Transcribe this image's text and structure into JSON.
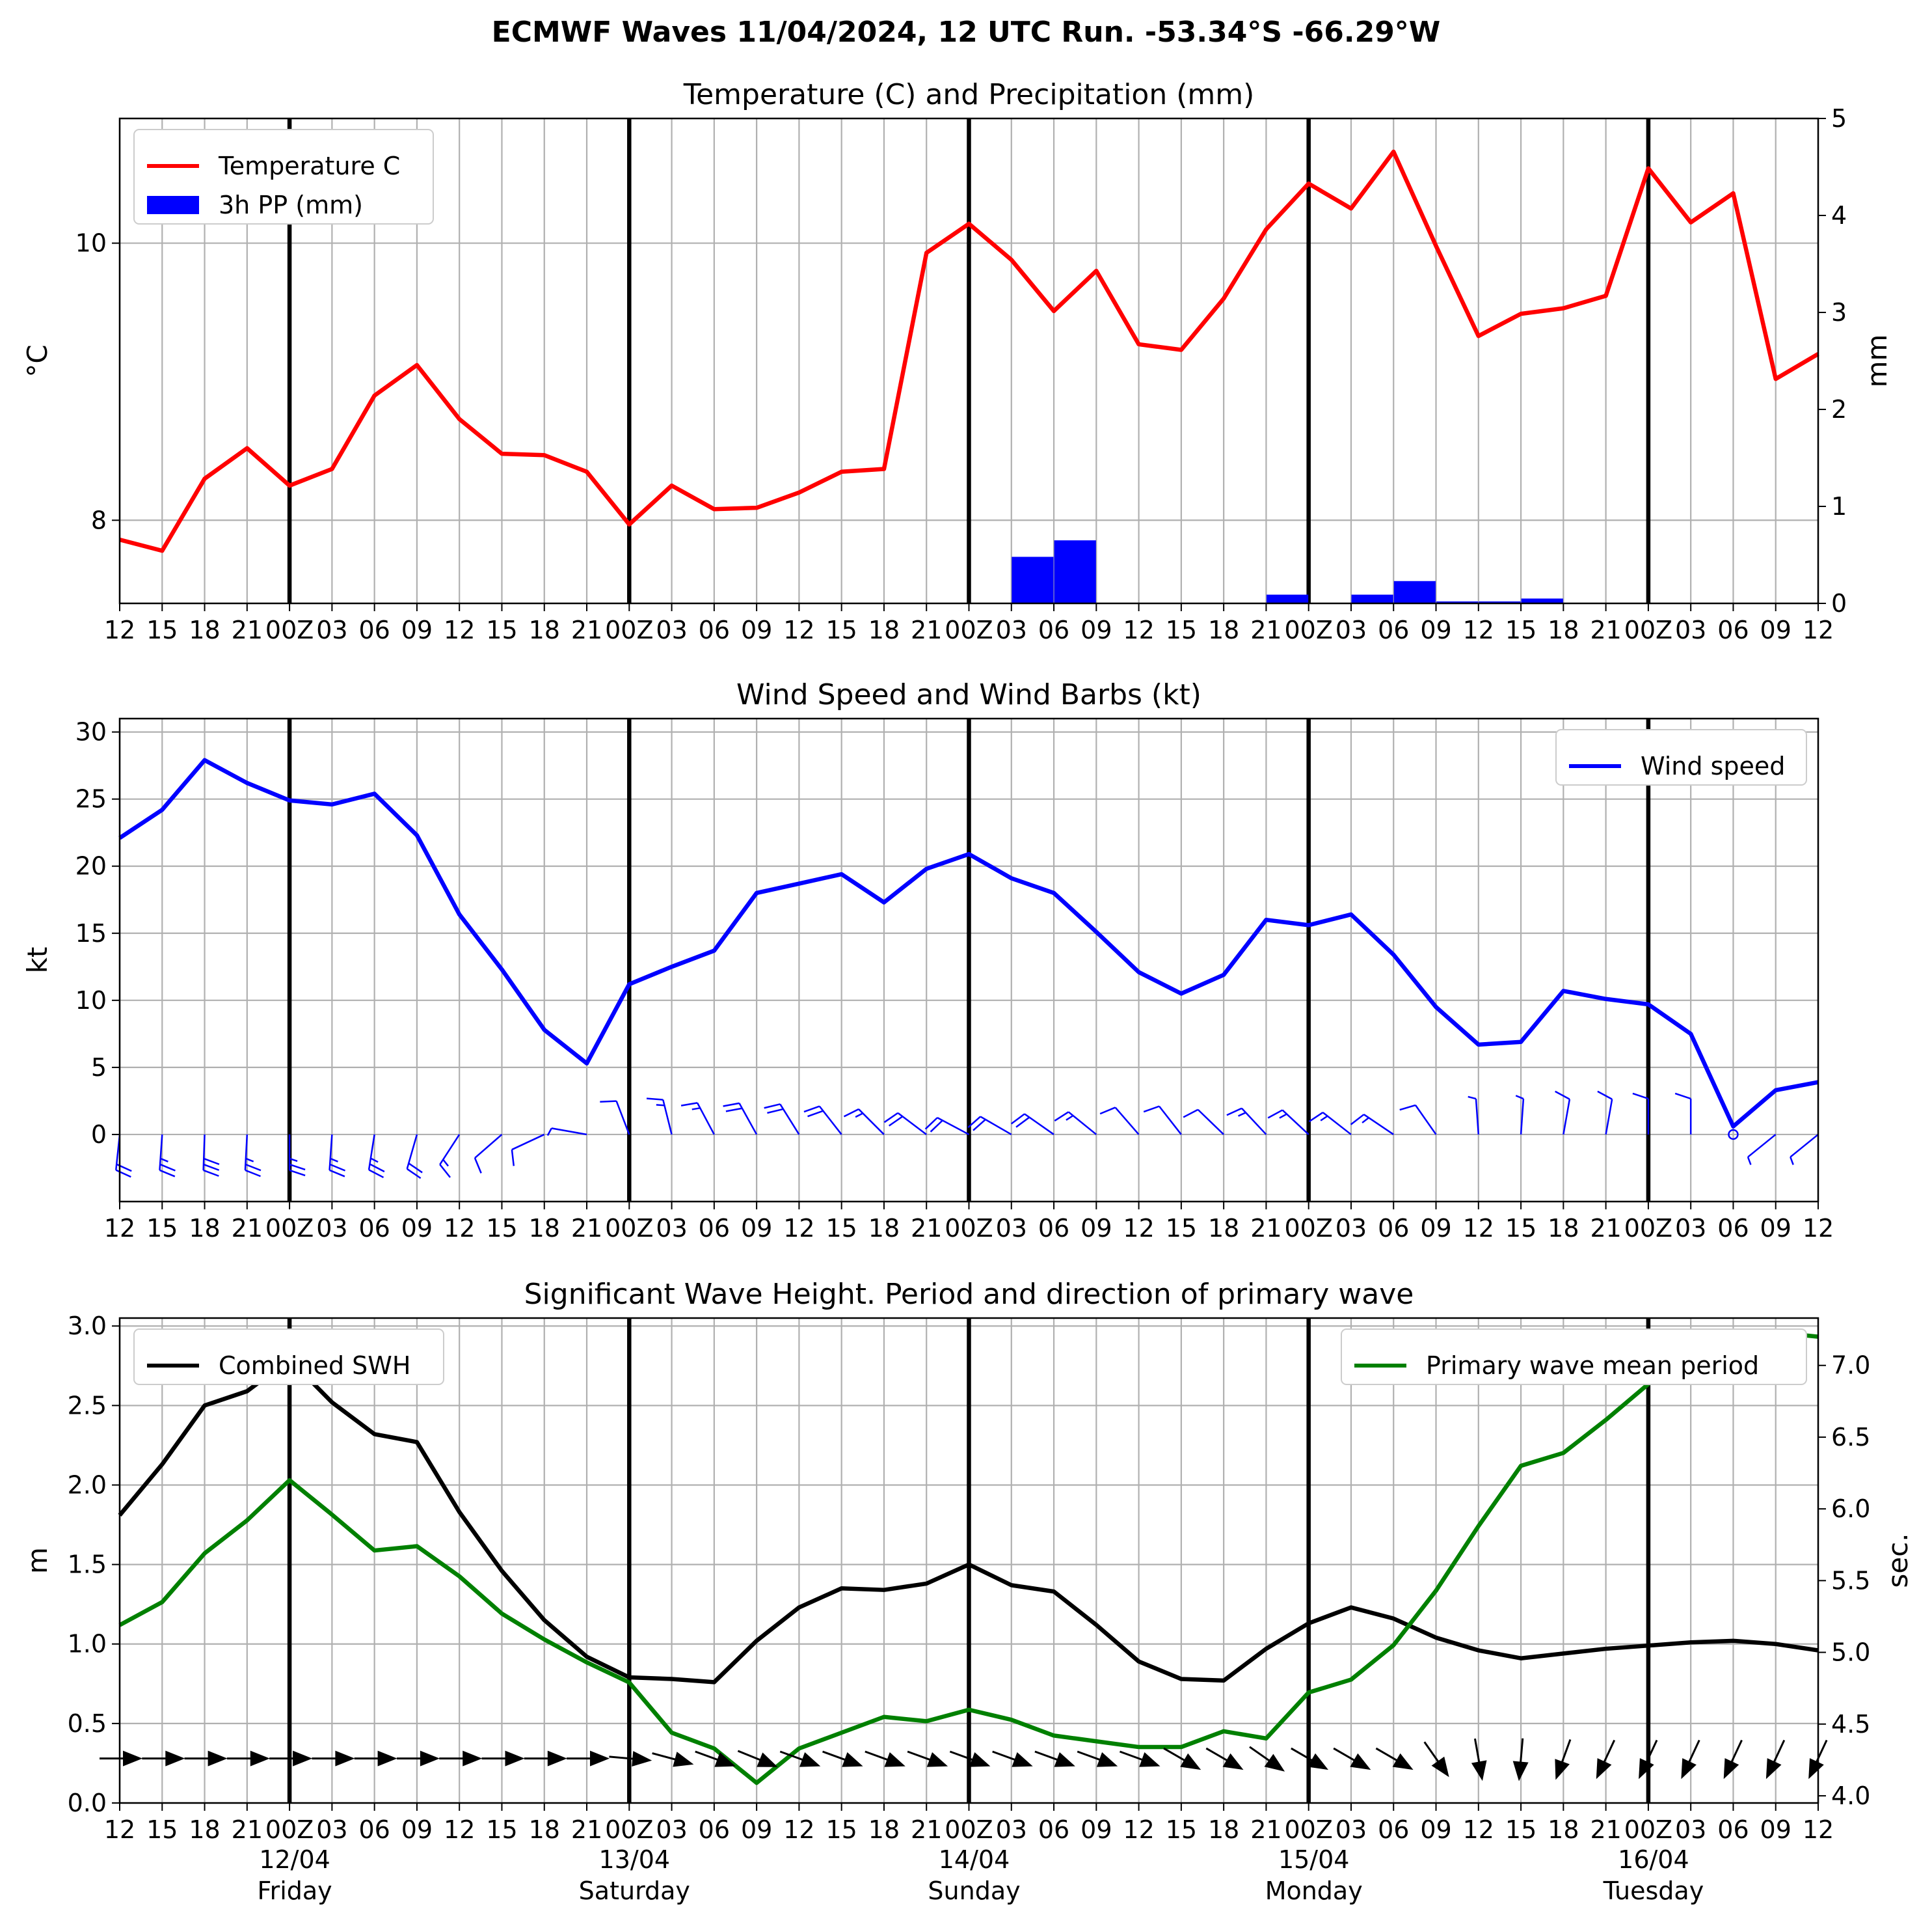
{
  "title": "ECMWF Waves 11/04/2024, 12 UTC Run. -53.34°S -66.29°W",
  "time_tick_labels": [
    "12",
    "15",
    "18",
    "21",
    "00Z",
    "03",
    "06",
    "09",
    "12",
    "15",
    "18",
    "21",
    "00Z",
    "03",
    "06",
    "09",
    "12",
    "15",
    "18",
    "21",
    "00Z",
    "03",
    "06",
    "09",
    "12",
    "15",
    "18",
    "21",
    "00Z",
    "03",
    "06",
    "09",
    "12",
    "15",
    "18",
    "21",
    "00Z",
    "03",
    "06",
    "09",
    "12"
  ],
  "day_labels": [
    {
      "date": "12/04",
      "day": "Friday"
    },
    {
      "date": "13/04",
      "day": "Saturday"
    },
    {
      "date": "14/04",
      "day": "Sunday"
    },
    {
      "date": "15/04",
      "day": "Monday"
    },
    {
      "date": "16/04",
      "day": "Tuesday"
    }
  ],
  "colors": {
    "temperature": "#ff0000",
    "precip": "#0000ff",
    "wind": "#0000ff",
    "swh": "#000000",
    "period": "#008000",
    "grid": "#b0b0b0"
  },
  "chart_data": [
    {
      "type": "line",
      "title": "Temperature (C) and Precipitation (mm)",
      "ylabel": "$^\\circ$C",
      "ylabel_right": "mm",
      "ylim": [
        7.4,
        10.9
      ],
      "yticks": [
        8,
        10
      ],
      "ylim_right": [
        0,
        5
      ],
      "yticks_right": [
        0,
        1,
        2,
        3,
        4,
        5
      ],
      "grid": true,
      "legend_placement": "top-left",
      "series": [
        {
          "name": "Temperature C",
          "kind": "line",
          "axis": "left",
          "values": [
            7.86,
            7.78,
            8.3,
            8.52,
            8.25,
            8.37,
            8.9,
            9.12,
            8.73,
            8.48,
            8.47,
            8.35,
            7.97,
            8.25,
            8.08,
            8.09,
            8.2,
            8.35,
            8.37,
            9.93,
            10.14,
            9.88,
            9.51,
            9.8,
            9.27,
            9.23,
            9.6,
            10.1,
            10.43,
            10.25,
            10.66,
            9.98,
            9.33,
            9.49,
            9.53,
            9.62,
            10.54,
            10.15,
            10.36,
            9.02,
            9.2
          ]
        },
        {
          "name": "3h PP (mm)",
          "kind": "bar",
          "axis": "right",
          "values": [
            0,
            0,
            0,
            0,
            0,
            0,
            0,
            0,
            0,
            0,
            0,
            0,
            0,
            0,
            0,
            0,
            0,
            0,
            0,
            0,
            0,
            0.48,
            0.65,
            0,
            0,
            0,
            0,
            0.09,
            0,
            0.09,
            0.23,
            0.02,
            0.02,
            0.05,
            0,
            0,
            0,
            0,
            0,
            0
          ]
        }
      ]
    },
    {
      "type": "line",
      "title": "Wind Speed and Wind Barbs (kt)",
      "ylabel": "kt",
      "ylim": [
        -5,
        31
      ],
      "yticks": [
        0,
        5,
        10,
        15,
        20,
        25,
        30
      ],
      "grid": true,
      "legend_placement": "top-right",
      "series": [
        {
          "name": "Wind speed",
          "values": [
            22.1,
            24.2,
            27.9,
            26.2,
            24.9,
            24.6,
            25.4,
            22.3,
            16.4,
            12.3,
            7.8,
            5.3,
            11.2,
            12.5,
            13.7,
            18,
            18.7,
            19.4,
            17.3,
            19.8,
            20.9,
            19.1,
            18,
            15.1,
            12.1,
            10.5,
            11.9,
            16,
            15.6,
            16.4,
            13.4,
            9.5,
            6.7,
            6.9,
            10.7,
            10.1,
            9.7,
            7.5,
            0.6,
            3.3,
            3.9
          ]
        }
      ],
      "wind_barb_directions_deg": [
        186,
        184,
        182,
        183,
        180,
        184,
        189,
        196,
        213,
        229,
        245,
        280,
        339,
        346,
        332,
        331,
        328,
        322,
        315,
        307,
        298,
        300,
        305,
        309,
        319,
        322,
        314,
        317,
        313,
        308,
        304,
        325,
        356,
        4,
        10,
        10,
        0,
        0,
        0,
        231,
        231
      ]
    },
    {
      "type": "line",
      "title": "Significant Wave Height. Period and direction of primary wave",
      "ylabel": "m",
      "ylabel_right": "sec.",
      "ylim": [
        0,
        3.05
      ],
      "yticks": [
        0.0,
        0.5,
        1.0,
        1.5,
        2.0,
        2.5,
        3.0
      ],
      "ylim_right": [
        3.95,
        7.33
      ],
      "yticks_right": [
        4.0,
        4.5,
        5.0,
        5.5,
        6.0,
        6.5,
        7.0
      ],
      "grid": true,
      "legend_placement": "top-left / top-right",
      "series": [
        {
          "name": "Combined SWH",
          "axis": "left",
          "values": [
            1.81,
            2.13,
            2.5,
            2.59,
            2.79,
            2.52,
            2.32,
            2.27,
            1.83,
            1.46,
            1.15,
            0.92,
            0.79,
            0.78,
            0.76,
            1.02,
            1.23,
            1.35,
            1.34,
            1.38,
            1.5,
            1.37,
            1.33,
            1.12,
            0.89,
            0.78,
            0.77,
            0.97,
            1.13,
            1.23,
            1.16,
            1.04,
            0.96,
            0.91,
            0.94,
            0.97,
            0.99,
            1.01,
            1.02,
            1.0,
            0.96
          ]
        },
        {
          "name": "Primary wave mean period",
          "axis": "right",
          "values": [
            5.19,
            5.35,
            5.69,
            5.92,
            6.2,
            5.96,
            5.71,
            5.74,
            5.53,
            5.27,
            5.09,
            4.93,
            4.79,
            4.44,
            4.33,
            4.09,
            4.33,
            4.44,
            4.55,
            4.52,
            4.6,
            4.53,
            4.42,
            4.38,
            4.34,
            4.34,
            4.45,
            4.4,
            4.72,
            4.81,
            5.05,
            5.43,
            5.88,
            6.3,
            6.39,
            6.62,
            6.87,
            7.08,
            7.22,
            7.23,
            7.2
          ]
        }
      ],
      "wave_direction_from_deg": [
        270,
        270,
        270,
        270,
        270,
        270,
        270,
        270,
        270,
        270,
        270,
        270,
        275,
        285,
        290,
        292,
        290,
        290,
        290,
        290,
        290,
        290,
        290,
        290,
        290,
        300,
        300,
        305,
        300,
        300,
        300,
        325,
        350,
        5,
        20,
        25,
        25,
        25,
        25,
        25,
        25
      ]
    }
  ]
}
